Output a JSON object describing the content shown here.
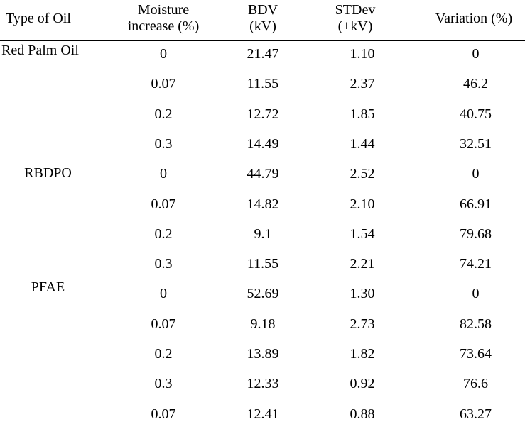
{
  "table": {
    "headers": {
      "oil": "Type of Oil",
      "moisture_line1": "Moisture",
      "moisture_line2": "increase (%)",
      "bdv_line1": "BDV",
      "bdv_line2": "(kV)",
      "std_line1": "STDev",
      "std_line2": "(±kV)",
      "variation": "Variation (%)"
    },
    "rows": [
      {
        "oil": "Red Palm Oil",
        "moisture": "0",
        "bdv": "21.47",
        "std": "1.10",
        "variation": "0"
      },
      {
        "oil": "",
        "moisture": "0.07",
        "bdv": "11.55",
        "std": "2.37",
        "variation": "46.2"
      },
      {
        "oil": "",
        "moisture": "0.2",
        "bdv": "12.72",
        "std": "1.85",
        "variation": "40.75"
      },
      {
        "oil": "",
        "moisture": "0.3",
        "bdv": "14.49",
        "std": "1.44",
        "variation": "32.51"
      },
      {
        "oil": "RBDPO",
        "moisture": "0",
        "bdv": "44.79",
        "std": "2.52",
        "variation": "0"
      },
      {
        "oil": "",
        "moisture": "0.07",
        "bdv": "14.82",
        "std": "2.10",
        "variation": "66.91"
      },
      {
        "oil": "",
        "moisture": "0.2",
        "bdv": "9.1",
        "std": "1.54",
        "variation": "79.68"
      },
      {
        "oil": "",
        "moisture": "0.3",
        "bdv": "11.55",
        "std": "2.21",
        "variation": "74.21"
      },
      {
        "oil": "PFAE",
        "moisture": "0",
        "bdv": "52.69",
        "std": "1.30",
        "variation": "0"
      },
      {
        "oil": "",
        "moisture": "0.07",
        "bdv": "9.18",
        "std": "2.73",
        "variation": "82.58"
      },
      {
        "oil": "",
        "moisture": "0.2",
        "bdv": "13.89",
        "std": "1.82",
        "variation": "73.64"
      },
      {
        "oil": "",
        "moisture": "0.3",
        "bdv": "12.33",
        "std": "0.92",
        "variation": "76.6"
      },
      {
        "oil": "",
        "moisture": "0.07",
        "bdv": "12.41",
        "std": "0.88",
        "variation": "63.27"
      }
    ]
  }
}
